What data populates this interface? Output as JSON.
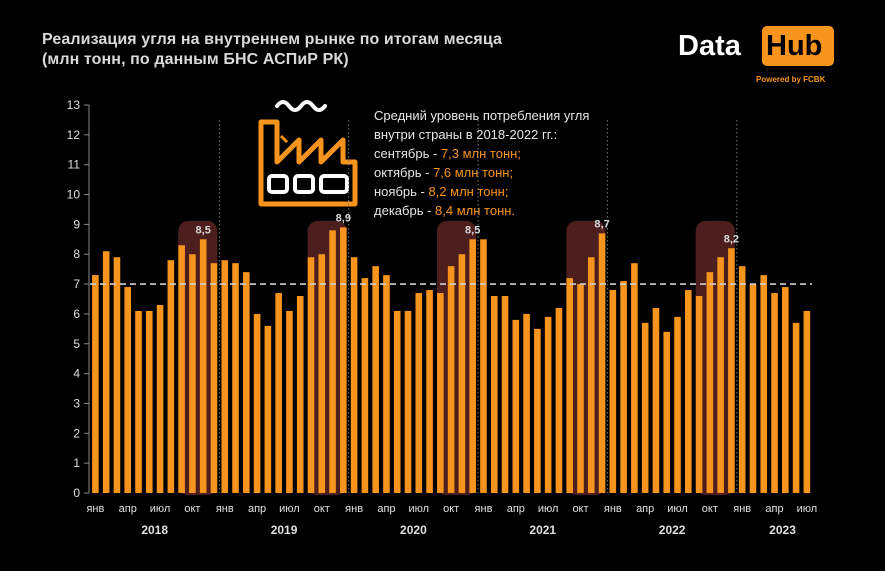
{
  "title_line1": "Реализация угля на внутреннем рынке по итогам месяца",
  "title_line2": "(млн тонн, по данным БНС АСПиР РК)",
  "logo": {
    "data": "Data",
    "hub": "Hub",
    "powered": "Powered by FCBK",
    "accent": "#f7941d"
  },
  "factory_icon": "factory-icon",
  "info": {
    "heading1": "Средний уровень потребления угля",
    "heading2": "внутри страны  в 2018-2022 гг.:",
    "rows": [
      {
        "label": "сентябрь - ",
        "value": "7,3 млн тонн;"
      },
      {
        "label": "октябрь - ",
        "value": "7,6 млн тонн;"
      },
      {
        "label": "ноябрь - ",
        "value": "8,2 млн тонн;"
      },
      {
        "label": "декабрь - ",
        "value": "8,4 млн тонн."
      }
    ]
  },
  "chart_data": {
    "type": "bar",
    "ylim": [
      0,
      13
    ],
    "yticks": [
      "0",
      "1",
      "2",
      "3",
      "4",
      "5",
      "6",
      "7",
      "8",
      "9",
      "10",
      "11",
      "12",
      "13"
    ],
    "reference_line": 7,
    "bar_color": "#f7941d",
    "highlight_color": "#5a2323",
    "month_labels": [
      "янв",
      "апр",
      "июл",
      "окт"
    ],
    "years": [
      "2018",
      "2019",
      "2020",
      "2021",
      "2022",
      "2023"
    ],
    "values": [
      7.3,
      8.1,
      7.9,
      6.9,
      6.1,
      6.1,
      6.3,
      7.8,
      8.3,
      8.0,
      8.5,
      7.7,
      7.8,
      7.7,
      7.4,
      6.0,
      5.6,
      6.7,
      6.1,
      6.6,
      7.9,
      8.0,
      8.8,
      8.9,
      7.9,
      7.2,
      7.6,
      7.3,
      6.1,
      6.1,
      6.7,
      6.8,
      6.7,
      7.6,
      8.0,
      8.5,
      8.5,
      6.6,
      6.6,
      5.8,
      6.0,
      5.5,
      5.9,
      6.2,
      7.2,
      7.0,
      7.9,
      8.7,
      6.8,
      7.1,
      7.7,
      5.7,
      6.2,
      5.4,
      5.9,
      6.8,
      6.6,
      7.4,
      7.9,
      8.2,
      7.6,
      7.0,
      7.3,
      6.7,
      6.9,
      5.7,
      6.1
    ],
    "peak_labels": [
      {
        "index": 10,
        "text": "8,5"
      },
      {
        "index": 23,
        "text": "8,9"
      },
      {
        "index": 35,
        "text": "8,5"
      },
      {
        "index": 47,
        "text": "8,7"
      },
      {
        "index": 59,
        "text": "8,2"
      }
    ]
  }
}
